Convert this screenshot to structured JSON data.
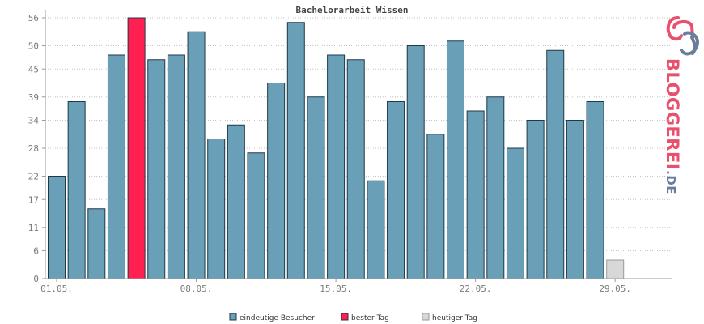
{
  "chart_data": {
    "type": "bar",
    "title": "Bachelorarbeit Wissen",
    "xlabel": "",
    "ylabel": "",
    "ylim": [
      0,
      56
    ],
    "y_ticks": [
      0,
      6,
      11,
      17,
      22,
      28,
      34,
      39,
      45,
      50,
      56
    ],
    "x_tick_labels": [
      "01.05.",
      "08.05.",
      "15.05.",
      "22.05.",
      "29.05."
    ],
    "grid": true,
    "legend_position": "bottom-center",
    "categories": [
      "01.05.",
      "02.05.",
      "03.05.",
      "04.05.",
      "05.05.",
      "06.05.",
      "07.05.",
      "08.05.",
      "09.05.",
      "10.05.",
      "11.05.",
      "12.05.",
      "13.05.",
      "14.05.",
      "15.05.",
      "16.05.",
      "17.05.",
      "18.05.",
      "19.05.",
      "20.05.",
      "21.05.",
      "22.05.",
      "23.05.",
      "24.05.",
      "25.05.",
      "26.05.",
      "27.05.",
      "28.05.",
      "29.05.",
      "30.05.",
      "31.05."
    ],
    "series": [
      {
        "name": "eindeutige Besucher",
        "values": [
          22,
          38,
          15,
          48,
          56,
          47,
          48,
          53,
          30,
          33,
          27,
          42,
          55,
          39,
          48,
          47,
          21,
          38,
          50,
          31,
          51,
          36,
          39,
          28,
          34,
          49,
          34,
          38,
          4,
          0,
          0
        ]
      }
    ],
    "best_day_index": 4,
    "current_day_index": 28,
    "legend": [
      "eindeutige Besucher",
      "bester Tag",
      "heutiger Tag"
    ],
    "colors": {
      "visitors": "#6a9fb8",
      "best_day": "#ff1f50",
      "today": "#d8d8d8",
      "bar_stroke": "#1e3a48",
      "today_stroke": "#9a9a9a",
      "grid": "#c4c4c4",
      "axis": "#9a9a9a"
    }
  },
  "logo": {
    "text_main": "BLOGGEREI",
    "text_suffix": ".DE",
    "icon": "bloggerei-logo-icon"
  }
}
